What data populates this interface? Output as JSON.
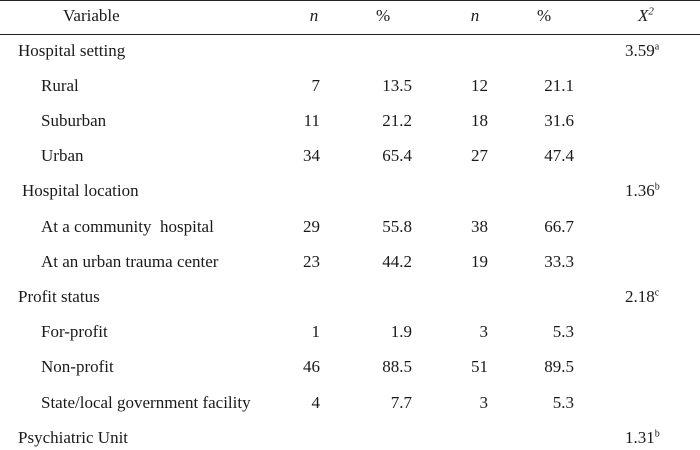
{
  "table": {
    "headers": {
      "variable": "Variable",
      "n1": "n",
      "pct1": "%",
      "n2": "n",
      "pct2": "%",
      "chi": "X",
      "chi_sup": "2"
    },
    "rows": [
      {
        "label": "Hospital setting",
        "chi": "3.59",
        "chi_note": "a"
      },
      {
        "label": "Rural",
        "n1": "7",
        "pct1": "13.5",
        "n2": "12",
        "pct2": "21.1"
      },
      {
        "label": "Suburban",
        "n1": "11",
        "pct1": "21.2",
        "n2": "18",
        "pct2": "31.6"
      },
      {
        "label": "Urban",
        "n1": "34",
        "pct1": "65.4",
        "n2": "27",
        "pct2": "47.4"
      },
      {
        "label": "Hospital location",
        "chi": "1.36",
        "chi_note": "b"
      },
      {
        "label": "At a community  hospital",
        "n1": "29",
        "pct1": "55.8",
        "n2": "38",
        "pct2": "66.7"
      },
      {
        "label": "At an urban trauma center",
        "n1": "23",
        "pct1": "44.2",
        "n2": "19",
        "pct2": "33.3"
      },
      {
        "label": "Profit status",
        "chi": "2.18",
        "chi_note": "c"
      },
      {
        "label": "For-profit",
        "n1": "1",
        "pct1": "1.9",
        "n2": "3",
        "pct2": "5.3"
      },
      {
        "label": "Non-profit",
        "n1": "46",
        "pct1": "88.5",
        "n2": "51",
        "pct2": "89.5"
      },
      {
        "label": "State/local government facility",
        "n1": "4",
        "pct1": "7.7",
        "n2": "3",
        "pct2": "5.3"
      },
      {
        "label": "Psychiatric Unit",
        "chi": "1.31",
        "chi_note": "b"
      }
    ]
  }
}
